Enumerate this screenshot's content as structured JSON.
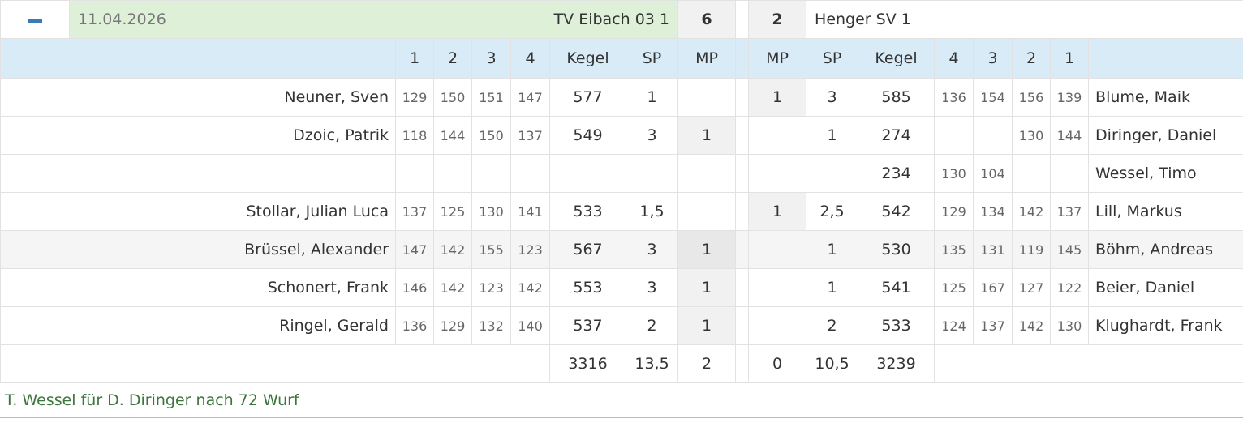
{
  "match": {
    "date": "11.04.2026",
    "home_team": "TV Eibach 03 1",
    "home_points": 6,
    "away_points": 2,
    "away_team": "Henger SV 1"
  },
  "columns": [
    "1",
    "2",
    "3",
    "4",
    "Kegel",
    "SP",
    "MP",
    "MP",
    "SP",
    "Kegel",
    "4",
    "3",
    "2",
    "1"
  ],
  "rows": [
    {
      "home_name": "Neuner, Sven",
      "home_sets": [
        129,
        150,
        151,
        147
      ],
      "home_kegel": 577,
      "home_sp": 1,
      "home_mp": null,
      "away_mp": 1,
      "away_sp": 3,
      "away_kegel": 585,
      "away_sets": [
        136,
        154,
        156,
        139
      ],
      "away_name": "Blume, Maik"
    },
    {
      "home_name": "Dzoic, Patrik",
      "home_sets": [
        118,
        144,
        150,
        137
      ],
      "home_kegel": 549,
      "home_sp": 3,
      "home_mp": 1,
      "away_mp": null,
      "away_sp": 1,
      "away_kegel": 274,
      "away_sets": [
        null,
        null,
        130,
        144
      ],
      "away_name": "Diringer, Daniel"
    },
    {
      "home_name": null,
      "home_sets": [
        null,
        null,
        null,
        null
      ],
      "home_kegel": null,
      "home_sp": null,
      "home_mp": null,
      "away_mp": null,
      "away_sp": null,
      "away_kegel": 234,
      "away_sets": [
        130,
        104,
        null,
        null
      ],
      "away_name": "Wessel, Timo"
    },
    {
      "home_name": "Stollar, Julian Luca",
      "home_sets": [
        137,
        125,
        130,
        141
      ],
      "home_kegel": 533,
      "home_sp": "1,5",
      "home_mp": null,
      "away_mp": 1,
      "away_sp": "2,5",
      "away_kegel": 542,
      "away_sets": [
        129,
        134,
        142,
        137
      ],
      "away_name": "Lill, Markus"
    },
    {
      "home_name": "Brüssel, Alexander",
      "home_sets": [
        147,
        142,
        155,
        123
      ],
      "home_kegel": 567,
      "home_sp": 3,
      "home_mp": 1,
      "away_mp": null,
      "away_sp": 1,
      "away_kegel": 530,
      "away_sets": [
        135,
        131,
        119,
        145
      ],
      "away_name": "Böhm, Andreas"
    },
    {
      "home_name": "Schonert, Frank",
      "home_sets": [
        146,
        142,
        123,
        142
      ],
      "home_kegel": 553,
      "home_sp": 3,
      "home_mp": 1,
      "away_mp": null,
      "away_sp": 1,
      "away_kegel": 541,
      "away_sets": [
        125,
        167,
        127,
        122
      ],
      "away_name": "Beier, Daniel"
    },
    {
      "home_name": "Ringel, Gerald",
      "home_sets": [
        136,
        129,
        132,
        140
      ],
      "home_kegel": 537,
      "home_sp": 2,
      "home_mp": 1,
      "away_mp": null,
      "away_sp": 2,
      "away_kegel": 533,
      "away_sets": [
        124,
        137,
        142,
        130
      ],
      "away_name": "Klughardt, Frank"
    }
  ],
  "totals": {
    "home_kegel": 3316,
    "home_sp": "13,5",
    "home_mp": 2,
    "away_mp": 0,
    "away_sp": "10,5",
    "away_kegel": 3239
  },
  "note": "T. Wessel für D. Diringer nach 72 Wurf"
}
